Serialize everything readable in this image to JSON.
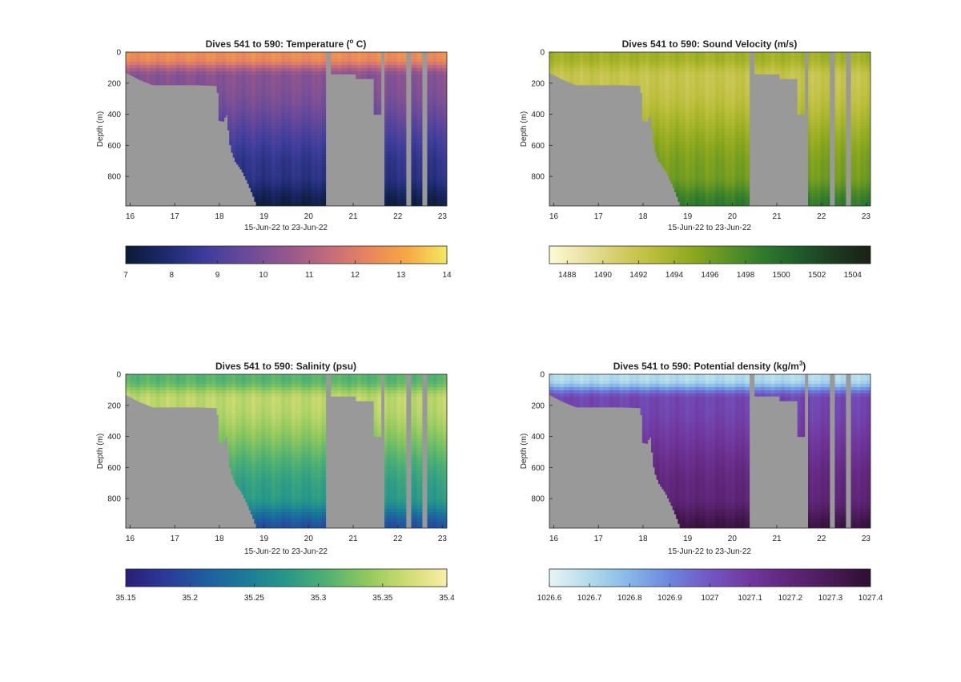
{
  "figure": {
    "background": "#ffffff",
    "seafloor_color": "#999999"
  },
  "chart_data": [
    {
      "type": "heatmap",
      "title": "Dives 541 to 590: Temperature (",
      "title_superscript": "o",
      "title_suffix": " C)",
      "xlabel": "15-Jun-22 to 23-Jun-22",
      "ylabel": "Depth (m)",
      "xlim": [
        15.9,
        23.1
      ],
      "ylim": [
        990,
        0
      ],
      "x_ticks": [
        16,
        17,
        18,
        19,
        20,
        21,
        22,
        23
      ],
      "y_ticks": [
        0,
        200,
        400,
        600,
        800
      ],
      "colorbar": {
        "min": 7,
        "max": 14,
        "ticks": [
          7,
          8,
          9,
          10,
          11,
          12,
          13,
          14
        ],
        "colors": [
          "#0a1a33",
          "#1c2a6e",
          "#3e3d9c",
          "#6a4a9a",
          "#94578d",
          "#c06a7e",
          "#e7835e",
          "#f6a843",
          "#f5e860"
        ]
      },
      "surface_value": 12.5,
      "mid_value": 10.2,
      "deep_value": 8.3,
      "bottom_value": 7.3
    },
    {
      "type": "heatmap",
      "title": "Dives 541 to 590: Sound Velocity (m/s)",
      "xlabel": "15-Jun-22 to 23-Jun-22",
      "ylabel": "Depth (m)",
      "xlim": [
        15.9,
        23.1
      ],
      "ylim": [
        990,
        0
      ],
      "x_ticks": [
        16,
        17,
        18,
        19,
        20,
        21,
        22,
        23
      ],
      "y_ticks": [
        0,
        200,
        400,
        600,
        800
      ],
      "colorbar": {
        "min": 1487,
        "max": 1505,
        "ticks": [
          1488,
          1490,
          1492,
          1494,
          1496,
          1498,
          1500,
          1502,
          1504
        ],
        "colors": [
          "#fdfbd6",
          "#e9e2a0",
          "#d2cd64",
          "#b7bc36",
          "#8ea81e",
          "#5c9324",
          "#2f7a2d",
          "#1e5b2a",
          "#1c3a20",
          "#1a2015"
        ]
      },
      "surface_value": 1494,
      "mid_value": 1492,
      "deep_value": 1496,
      "bottom_value": 1499
    },
    {
      "type": "heatmap",
      "title": "Dives 541 to 590: Salinity (psu)",
      "xlabel": "15-Jun-22 to 23-Jun-22",
      "ylabel": "Depth (m)",
      "xlim": [
        15.9,
        23.1
      ],
      "ylim": [
        990,
        0
      ],
      "x_ticks": [
        16,
        17,
        18,
        19,
        20,
        21,
        22,
        23
      ],
      "y_ticks": [
        0,
        200,
        400,
        600,
        800
      ],
      "colorbar": {
        "min": 35.15,
        "max": 35.4,
        "ticks": [
          35.15,
          35.2,
          35.25,
          35.3,
          35.35,
          35.4
        ],
        "colors": [
          "#2a1e78",
          "#2b3a98",
          "#1e5ea0",
          "#1b7c98",
          "#27988a",
          "#4fb171",
          "#8fc85d",
          "#cfdc72",
          "#f9f0a6"
        ]
      },
      "surface_value": 35.31,
      "mid_value": 35.36,
      "deep_value": 35.28,
      "bottom_value": 35.2
    },
    {
      "type": "heatmap",
      "title": "Dives 541 to 590: Potential density (kg/m",
      "title_superscript": "3",
      "title_suffix": ")",
      "xlabel": "15-Jun-22 to 23-Jun-22",
      "ylabel": "Depth (m)",
      "xlim": [
        15.9,
        23.1
      ],
      "ylim": [
        990,
        0
      ],
      "x_ticks": [
        16,
        17,
        18,
        19,
        20,
        21,
        22,
        23
      ],
      "y_ticks": [
        0,
        200,
        400,
        600,
        800
      ],
      "colorbar": {
        "min": 1026.6,
        "max": 1027.4,
        "ticks": [
          1026.6,
          1026.7,
          1026.8,
          1026.9,
          1027,
          1027.1,
          1027.2,
          1027.3,
          1027.4
        ],
        "colors": [
          "#e8f4f6",
          "#b2dbea",
          "#86b7e8",
          "#6c86de",
          "#7256c2",
          "#71379e",
          "#5f2578",
          "#4a1a58",
          "#2c0e30"
        ]
      },
      "surface_value": 1026.7,
      "mid_value": 1027.05,
      "deep_value": 1027.2,
      "bottom_value": 1027.35
    }
  ]
}
